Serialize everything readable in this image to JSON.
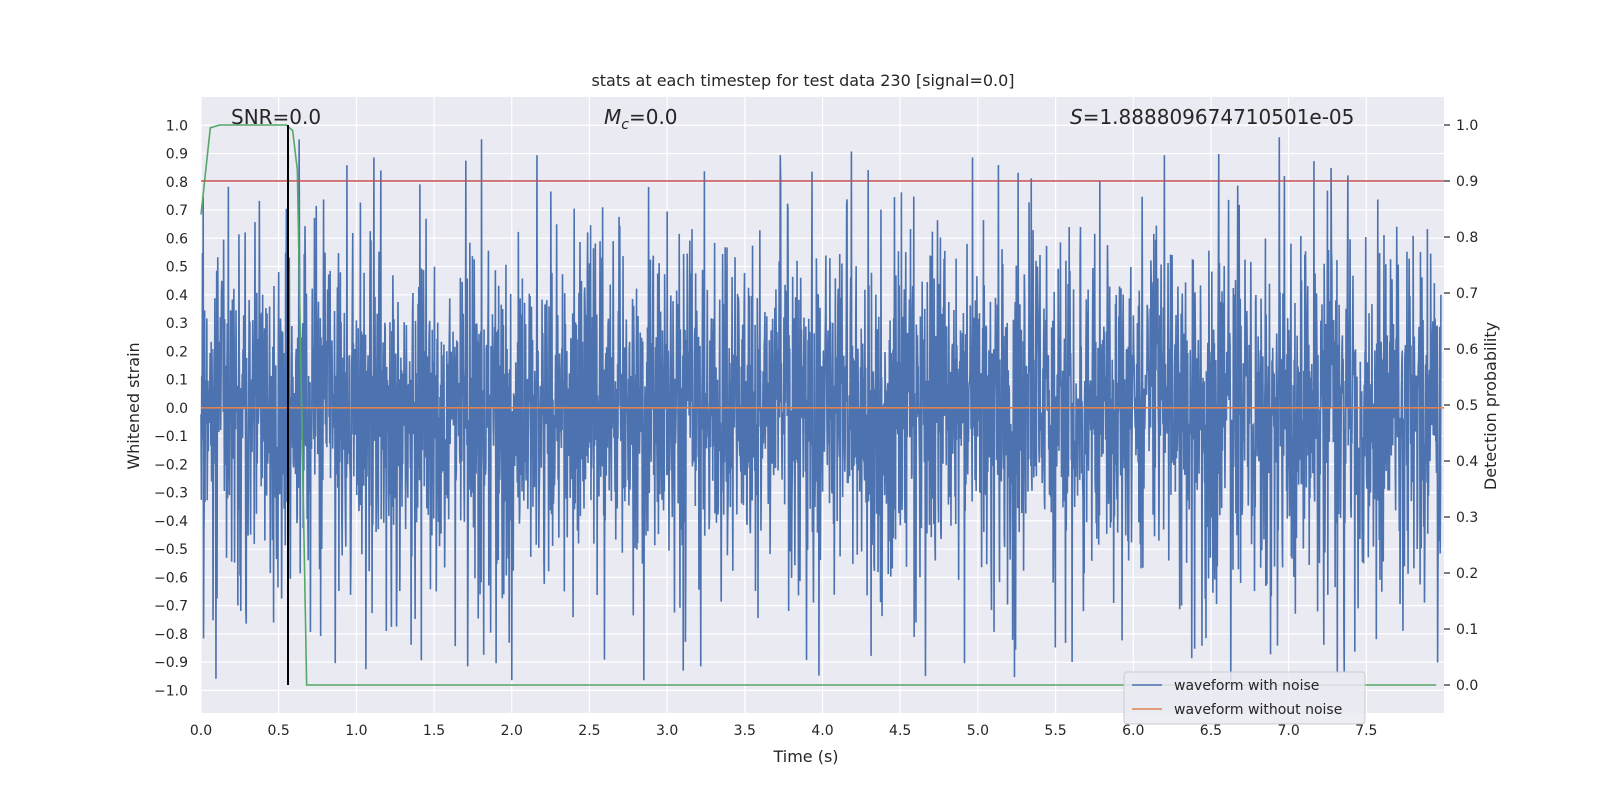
{
  "chart_data": {
    "type": "line",
    "title": "stats at each timestep for test data 230 [signal=0.0]",
    "xlabel": "Time (s)",
    "ylabel": "Whitened strain",
    "ylabel_right": "Detection probability",
    "xlim": [
      0.0,
      8.0
    ],
    "ylim": [
      -1.08,
      1.1
    ],
    "ylim_right": [
      -0.05,
      1.05
    ],
    "xticks": [
      0.0,
      0.5,
      1.0,
      1.5,
      2.0,
      2.5,
      3.0,
      3.5,
      4.0,
      4.5,
      5.0,
      5.5,
      6.0,
      6.5,
      7.0,
      7.5
    ],
    "xtick_labels": [
      "0.0",
      "0.5",
      "1.0",
      "1.5",
      "2.0",
      "2.5",
      "3.0",
      "3.5",
      "4.0",
      "4.5",
      "5.0",
      "5.5",
      "6.0",
      "6.5",
      "7.0",
      "7.5"
    ],
    "yticks": [
      1.0,
      0.9,
      0.8,
      0.7,
      0.6,
      0.5,
      0.4,
      0.3,
      0.2,
      0.1,
      0.0,
      -0.1,
      -0.2,
      -0.3,
      -0.4,
      -0.5,
      -0.6,
      -0.7,
      -0.8,
      -0.9,
      -1.0
    ],
    "ytick_labels": [
      "1.0",
      "0.9",
      "0.8",
      "0.7",
      "0.6",
      "0.5",
      "0.4",
      "0.3",
      "0.2",
      "0.1",
      "0.0",
      "−0.1",
      "−0.2",
      "−0.3",
      "−0.4",
      "−0.5",
      "−0.6",
      "−0.7",
      "−0.8",
      "−0.9",
      "−1.0"
    ],
    "yticks_right": [
      1.0,
      0.9,
      0.8,
      0.7,
      0.6,
      0.5,
      0.4,
      0.3,
      0.2,
      0.1,
      0.0
    ],
    "ytick_labels_right": [
      "1.0",
      "0.9",
      "0.8",
      "0.7",
      "0.6",
      "0.5",
      "0.4",
      "0.3",
      "0.2",
      "0.1",
      "0.0"
    ],
    "annotations": {
      "snr": "SNR=0.0",
      "mc_symbol": "M",
      "mc_subscript": "c",
      "mc_value": "=0.0",
      "s_symbol": "S",
      "s_value": "=1.888809674710501e-05"
    },
    "series": [
      {
        "name": "waveform with noise",
        "axis": "left",
        "color": "#4c72b0",
        "description": "dense noise trace, amplitude roughly within -0.97 to 0.99",
        "noise_seed": 230
      },
      {
        "name": "waveform without noise",
        "axis": "left",
        "color": "#dd8452",
        "x": [
          0.0,
          8.0
        ],
        "y": [
          0.0,
          0.0
        ]
      },
      {
        "name": "detection probability",
        "axis": "right",
        "color": "#55a868",
        "x": [
          0.0,
          0.06,
          0.12,
          0.55,
          0.59,
          0.62,
          0.68,
          7.95
        ],
        "y": [
          0.84,
          0.995,
          1.0,
          1.0,
          0.99,
          0.92,
          0.0,
          0.0
        ]
      },
      {
        "name": "threshold",
        "axis": "right",
        "color": "#c44e52",
        "x": [
          0.0,
          8.0
        ],
        "y": [
          0.9,
          0.9
        ]
      },
      {
        "name": "detection time marker",
        "axis": "right",
        "color": "#000000",
        "x": [
          0.56,
          0.56
        ],
        "y": [
          0.0,
          1.0
        ]
      }
    ],
    "legend": {
      "placement": "lower-right",
      "entries": [
        "waveform with noise",
        "waveform without noise"
      ]
    },
    "colors": {
      "background": "#eaeaf2",
      "grid": "#ffffff",
      "text": "#262626"
    }
  }
}
